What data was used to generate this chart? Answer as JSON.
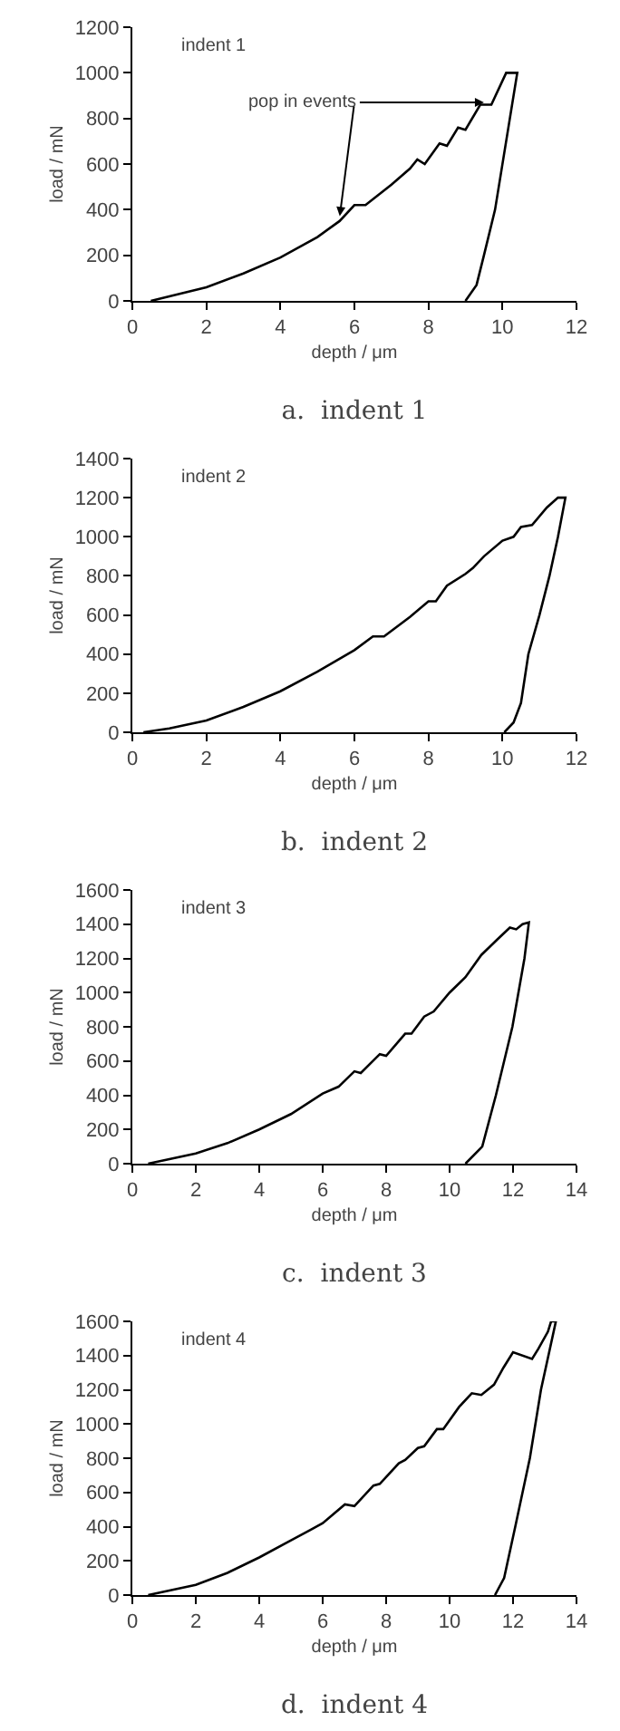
{
  "chart_data": [
    {
      "type": "line",
      "title": "a.  indent 1",
      "xlabel": "depth / μm",
      "ylabel": "load / mN",
      "annotations": [
        "indent 1",
        {
          "text": "pop in events",
          "x": 9.5,
          "y": 870
        }
      ],
      "xlim": [
        0,
        12
      ],
      "xticks": [
        0,
        2,
        4,
        6,
        8,
        10,
        12
      ],
      "ylim": [
        0,
        1200
      ],
      "yticks": [
        0,
        200,
        400,
        600,
        800,
        1000,
        1200
      ],
      "series": [
        {
          "color": "#000000",
          "x": [
            0.5,
            1,
            2,
            3,
            4,
            5,
            5.6,
            6,
            6.3,
            7,
            7.5,
            7.7,
            7.9,
            8.3,
            8.5,
            8.8,
            9.0,
            9.4,
            9.7,
            10.1,
            10.4,
            10.2,
            9.8,
            9.5,
            9.3,
            9.0
          ],
          "values": [
            0,
            20,
            60,
            120,
            190,
            280,
            350,
            420,
            420,
            510,
            580,
            620,
            600,
            690,
            680,
            760,
            750,
            860,
            860,
            1000,
            1000,
            800,
            400,
            200,
            70,
            0
          ]
        }
      ]
    },
    {
      "type": "line",
      "title": "b.  indent 2",
      "xlabel": "depth / μm",
      "ylabel": "load / mN",
      "annotations": [
        "indent 2"
      ],
      "xlim": [
        0,
        12
      ],
      "xticks": [
        0,
        2,
        4,
        6,
        8,
        10,
        12
      ],
      "ylim": [
        0,
        1400
      ],
      "yticks": [
        0,
        200,
        400,
        600,
        800,
        1000,
        1200,
        1400
      ],
      "series": [
        {
          "color": "#000000",
          "x": [
            0.3,
            1,
            2,
            3,
            4,
            5,
            6,
            6.5,
            6.8,
            7.5,
            8,
            8.2,
            8.5,
            9,
            9.2,
            9.5,
            10,
            10.3,
            10.5,
            10.8,
            11.2,
            11.5,
            11.7,
            11.5,
            11.27,
            11.0,
            10.7,
            10.5,
            10.3,
            10.05
          ],
          "values": [
            0,
            20,
            60,
            130,
            210,
            310,
            420,
            490,
            490,
            590,
            670,
            670,
            750,
            810,
            840,
            900,
            980,
            1000,
            1050,
            1060,
            1150,
            1200,
            1200,
            1000,
            800,
            600,
            400,
            150,
            50,
            0
          ]
        }
      ]
    },
    {
      "type": "line",
      "title": "c.  indent 3",
      "xlabel": "depth / μm",
      "ylabel": "load / mN",
      "annotations": [
        "indent 3"
      ],
      "xlim": [
        0,
        14
      ],
      "xticks": [
        0,
        2,
        4,
        6,
        8,
        10,
        12,
        14
      ],
      "ylim": [
        0,
        1600
      ],
      "yticks": [
        0,
        200,
        400,
        600,
        800,
        1000,
        1200,
        1400,
        1600
      ],
      "series": [
        {
          "color": "#000000",
          "x": [
            0.5,
            1,
            2,
            3,
            4,
            5,
            6,
            6.5,
            7,
            7.2,
            7.8,
            8,
            8.6,
            8.8,
            9.2,
            9.5,
            10,
            10.5,
            11,
            11.5,
            11.9,
            12.1,
            12.3,
            12.5,
            12.36,
            11.98,
            11.46,
            11.03,
            10.5
          ],
          "values": [
            0,
            20,
            60,
            120,
            200,
            290,
            410,
            450,
            540,
            530,
            640,
            630,
            760,
            760,
            860,
            890,
            1000,
            1090,
            1220,
            1310,
            1380,
            1370,
            1400,
            1410,
            1200,
            800,
            400,
            100,
            0
          ]
        }
      ]
    },
    {
      "type": "line",
      "title": "d.  indent 4",
      "xlabel": "depth / μm",
      "ylabel": "load / mN",
      "annotations": [
        "indent 4"
      ],
      "xlim": [
        0,
        14
      ],
      "xticks": [
        0,
        2,
        4,
        6,
        8,
        10,
        12,
        14
      ],
      "ylim": [
        0,
        1600
      ],
      "yticks": [
        0,
        200,
        400,
        600,
        800,
        1000,
        1200,
        1400,
        1600
      ],
      "series": [
        {
          "color": "#000000",
          "x": [
            0.5,
            1,
            2,
            3,
            4,
            5,
            5.6,
            6,
            6.7,
            7,
            7.6,
            7.8,
            8.4,
            8.6,
            9,
            9.2,
            9.6,
            9.8,
            10.3,
            10.7,
            11,
            11.4,
            11.7,
            12,
            12.6,
            12.8,
            13.1,
            13.2,
            13.35,
            12.88,
            12.53,
            12.07,
            11.72,
            11.43
          ],
          "values": [
            0,
            20,
            60,
            130,
            220,
            320,
            380,
            420,
            530,
            520,
            640,
            650,
            770,
            790,
            860,
            870,
            970,
            970,
            1100,
            1180,
            1170,
            1230,
            1330,
            1420,
            1380,
            1440,
            1540,
            1600,
            1600,
            1200,
            800,
            400,
            100,
            0
          ]
        }
      ]
    }
  ]
}
